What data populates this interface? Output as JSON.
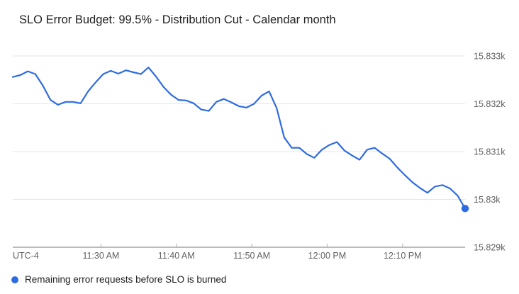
{
  "title": "SLO Error Budget: 99.5% - Distribution Cut - Calendar month",
  "legend": {
    "series_label": "Remaining error requests before SLO is burned"
  },
  "colors": {
    "line": "#2f6ce1",
    "marker": "#2d6ce0",
    "grid": "#e6e6e6",
    "baseline": "#757575",
    "tick": "#b0b0b0",
    "axis_label": "#616161",
    "title_text": "#212121",
    "legend_text": "#212121"
  },
  "chart_data": {
    "type": "line",
    "title": "SLO Error Budget: 99.5% - Distribution Cut - Calendar month",
    "xlabel": "",
    "ylabel": "",
    "grid": true,
    "legend_position": "bottom-left",
    "ylim": [
      15829,
      15833
    ],
    "y_axis": {
      "side": "right",
      "ticks": [
        {
          "label": "15.833k",
          "value": 15833
        },
        {
          "label": "15.832k",
          "value": 15832
        },
        {
          "label": "15.831k",
          "value": 15831
        },
        {
          "label": "15.83k",
          "value": 15830
        },
        {
          "label": "15.829k",
          "value": 15829
        }
      ]
    },
    "x_axis": {
      "note": "UTC-4",
      "span_minutes": 60,
      "ticks": [
        {
          "label": "11:30 AM",
          "offset": 11.7
        },
        {
          "label": "11:40 AM",
          "offset": 21.7
        },
        {
          "label": "11:50 AM",
          "offset": 31.7
        },
        {
          "label": "12:00 PM",
          "offset": 41.7
        },
        {
          "label": "12:10 PM",
          "offset": 51.7
        }
      ]
    },
    "series": [
      {
        "name": "Remaining error requests before SLO is burned",
        "points": [
          [
            "11:18 AM",
            15832.56
          ],
          [
            "11:19 AM",
            15832.6
          ],
          [
            "11:20 AM",
            15832.68
          ],
          [
            "11:21 AM",
            15832.62
          ],
          [
            "11:22 AM",
            15832.38
          ],
          [
            "11:23 AM",
            15832.08
          ],
          [
            "11:24 AM",
            15831.98
          ],
          [
            "11:25 AM",
            15832.04
          ],
          [
            "11:26 AM",
            15832.04
          ],
          [
            "11:27 AM",
            15832.01
          ],
          [
            "11:28 AM",
            15832.26
          ],
          [
            "11:29 AM",
            15832.45
          ],
          [
            "11:30 AM",
            15832.62
          ],
          [
            "11:31 AM",
            15832.69
          ],
          [
            "11:32 AM",
            15832.63
          ],
          [
            "11:33 AM",
            15832.7
          ],
          [
            "11:34 AM",
            15832.66
          ],
          [
            "11:35 AM",
            15832.62
          ],
          [
            "11:36 AM",
            15832.76
          ],
          [
            "11:37 AM",
            15832.57
          ],
          [
            "11:38 AM",
            15832.35
          ],
          [
            "11:39 AM",
            15832.19
          ],
          [
            "11:40 AM",
            15832.08
          ],
          [
            "11:41 AM",
            15832.07
          ],
          [
            "11:42 AM",
            15832.01
          ],
          [
            "11:43 AM",
            15831.88
          ],
          [
            "11:44 AM",
            15831.85
          ],
          [
            "11:45 AM",
            15832.04
          ],
          [
            "11:46 AM",
            15832.1
          ],
          [
            "11:47 AM",
            15832.03
          ],
          [
            "11:48 AM",
            15831.95
          ],
          [
            "11:49 AM",
            15831.92
          ],
          [
            "11:50 AM",
            15832.0
          ],
          [
            "11:51 AM",
            15832.17
          ],
          [
            "11:52 AM",
            15832.26
          ],
          [
            "11:53 AM",
            15831.91
          ],
          [
            "11:54 AM",
            15831.3
          ],
          [
            "11:55 AM",
            15831.08
          ],
          [
            "11:56 AM",
            15831.08
          ],
          [
            "11:57 AM",
            15830.95
          ],
          [
            "11:58 AM",
            15830.87
          ],
          [
            "11:59 AM",
            15831.04
          ],
          [
            "12:00 PM",
            15831.14
          ],
          [
            "12:01 PM",
            15831.2
          ],
          [
            "12:02 PM",
            15831.02
          ],
          [
            "12:03 PM",
            15830.92
          ],
          [
            "12:04 PM",
            15830.83
          ],
          [
            "12:05 PM",
            15831.04
          ],
          [
            "12:06 PM",
            15831.08
          ],
          [
            "12:07 PM",
            15830.96
          ],
          [
            "12:08 PM",
            15830.85
          ],
          [
            "12:09 PM",
            15830.67
          ],
          [
            "12:10 PM",
            15830.51
          ],
          [
            "12:11 PM",
            15830.36
          ],
          [
            "12:12 PM",
            15830.24
          ],
          [
            "12:13 PM",
            15830.14
          ],
          [
            "12:14 PM",
            15830.27
          ],
          [
            "12:15 PM",
            15830.3
          ],
          [
            "12:16 PM",
            15830.23
          ],
          [
            "12:17 PM",
            15830.08
          ],
          [
            "12:18 PM",
            15829.81
          ]
        ]
      }
    ]
  }
}
